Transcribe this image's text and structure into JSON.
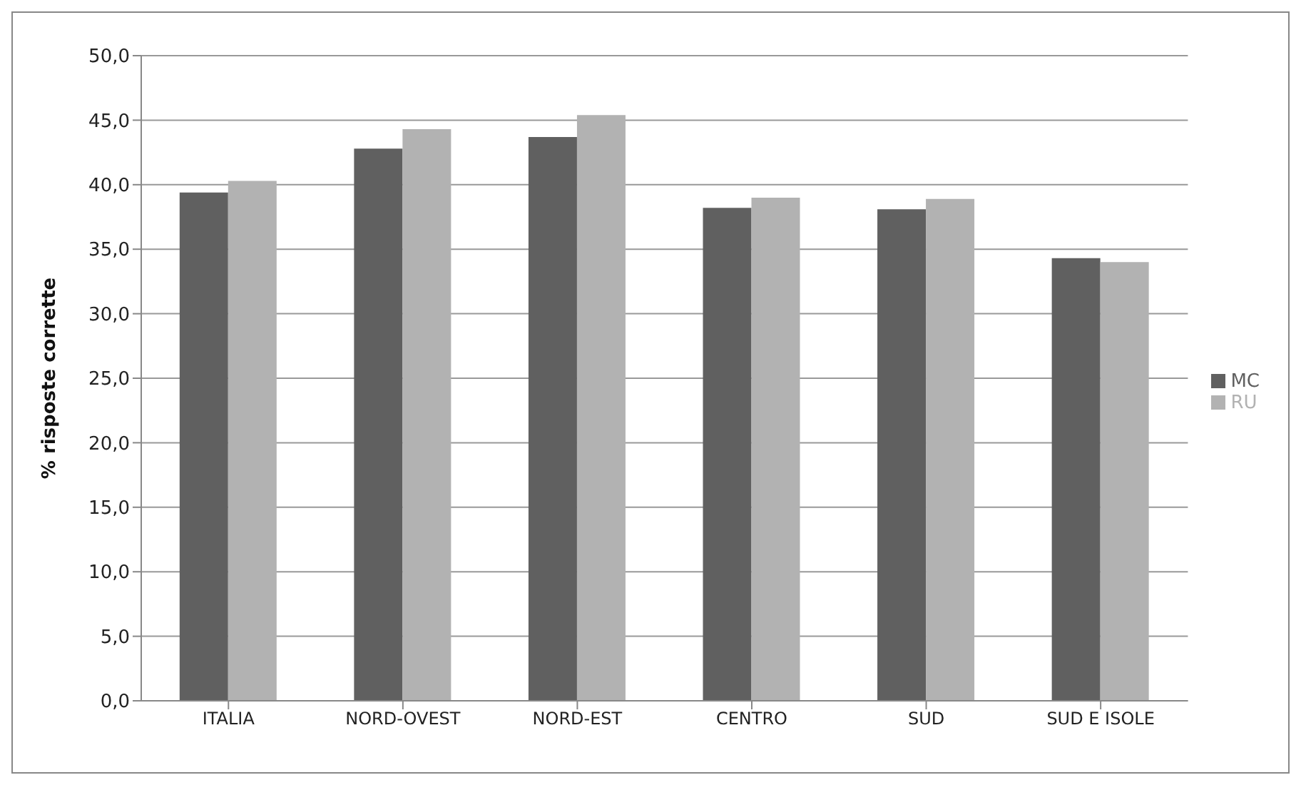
{
  "chart_data": {
    "type": "bar",
    "ylabel": "% risposte corrette",
    "categories": [
      "ITALIA",
      "NORD-OVEST",
      "NORD-EST",
      "CENTRO",
      "SUD",
      "SUD E ISOLE"
    ],
    "series": [
      {
        "name": "MC",
        "color": "#606060",
        "values": [
          39.4,
          42.8,
          43.7,
          38.2,
          38.1,
          34.3
        ]
      },
      {
        "name": "RU",
        "color": "#b2b2b2",
        "values": [
          40.3,
          44.3,
          45.4,
          39.0,
          38.9,
          34.0
        ]
      }
    ],
    "ylim": [
      0,
      50
    ],
    "yticks": [
      {
        "value": 0,
        "label": "0,0"
      },
      {
        "value": 5,
        "label": "5,0"
      },
      {
        "value": 10,
        "label": "10,0"
      },
      {
        "value": 15,
        "label": "15,0"
      },
      {
        "value": 20,
        "label": "20,0"
      },
      {
        "value": 25,
        "label": "25,0"
      },
      {
        "value": 30,
        "label": "30,0"
      },
      {
        "value": 35,
        "label": "35,0"
      },
      {
        "value": 40,
        "label": "40,0"
      },
      {
        "value": 45,
        "label": "45,0"
      },
      {
        "value": 50,
        "label": "50,0"
      }
    ],
    "grid": "y",
    "legend": "right"
  }
}
